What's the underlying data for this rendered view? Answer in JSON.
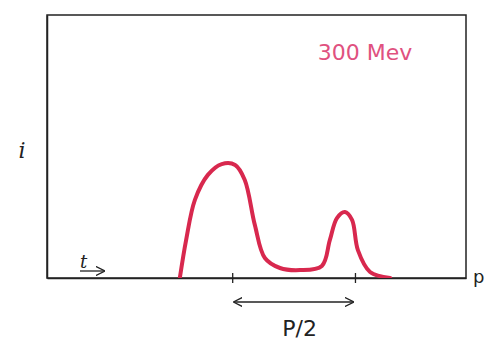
{
  "chart_data": {
    "type": "line",
    "title": "300 Mev",
    "x_label": "t",
    "y_label": "i",
    "x": [
      31.7,
      33.2,
      35.3,
      38.4,
      41.7,
      44.9,
      47.2,
      49.6,
      52.0,
      55.6,
      60.4,
      65.6,
      67.5,
      69.2,
      71.1,
      72.8,
      74.2,
      77.1,
      81.9
    ],
    "values": [
      0,
      14.4,
      29.7,
      39.2,
      43.3,
      43.0,
      37.3,
      20.2,
      7.6,
      3.8,
      3.0,
      4.6,
      14.4,
      22.8,
      25.1,
      22.1,
      10.6,
      2.3,
      0
    ],
    "color": "#d8284e",
    "xlim": [
      0,
      100
    ],
    "ylim": [
      0,
      100
    ],
    "xticks": [
      44.2,
      73.5
    ],
    "yticks": [],
    "tick_labels": false,
    "annotations": [
      {
        "text": "P/2",
        "x": [
          44.2,
          73.5
        ]
      },
      {
        "text": "p",
        "x": 100
      }
    ]
  }
}
